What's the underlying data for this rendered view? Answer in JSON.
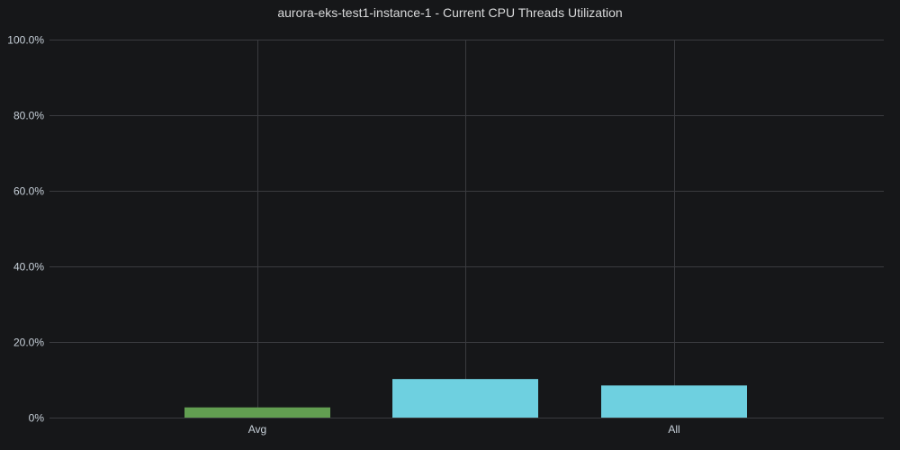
{
  "panel": {
    "title": "aurora-eks-test1-instance-1 - Current CPU Threads Utilization"
  },
  "chart_data": {
    "type": "bar",
    "title": "aurora-eks-test1-instance-1 - Current CPU Threads Utilization",
    "xlabel": "",
    "ylabel": "",
    "ylim": [
      0,
      100
    ],
    "y_ticks": [
      0,
      20,
      40,
      60,
      80,
      100
    ],
    "y_tick_labels": [
      "0%",
      "20.0%",
      "40.0%",
      "60.0%",
      "80.0%",
      "100.0%"
    ],
    "grid": true,
    "x_labels": [
      "Avg",
      "All"
    ],
    "bars": [
      {
        "label": "Avg",
        "value": 2.7,
        "color": "#629e51"
      },
      {
        "label": "",
        "value": 10.2,
        "color": "#6ed0e0"
      },
      {
        "label": "All",
        "value": 8.5,
        "color": "#6ed0e0"
      }
    ]
  }
}
